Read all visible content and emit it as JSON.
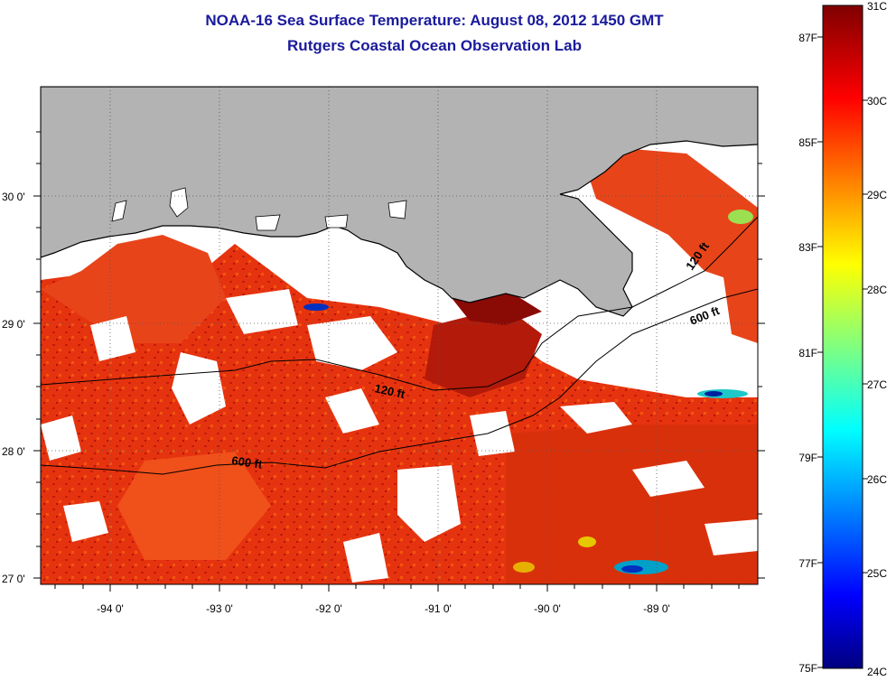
{
  "header": {
    "title": "NOAA-16 Sea Surface Temperature:  August 08, 2012 1450 GMT",
    "subtitle": "Rutgers Coastal Ocean Observation Lab"
  },
  "map": {
    "lat_labels": [
      "30 0'",
      "29 0'",
      "28 0'",
      "27 0'"
    ],
    "lon_labels": [
      "-94 0'",
      "-93 0'",
      "-92 0'",
      "-91 0'",
      "-90 0'",
      "-89 0'"
    ],
    "contour_labels": [
      "120 ft",
      "120 ft",
      "600 ft",
      "600 ft"
    ],
    "colors": {
      "land": "#b3b3b3",
      "cloud": "#ffffff",
      "sst_dominant": "#e8320c"
    }
  },
  "colorbar": {
    "celsius_labels": [
      "31C",
      "30C",
      "29C",
      "28C",
      "27C",
      "26C",
      "25C",
      "24C"
    ],
    "fahrenheit_labels": [
      "87F",
      "85F",
      "83F",
      "81F",
      "79F",
      "77F",
      "75F"
    ],
    "range_c": [
      24,
      31
    ]
  }
}
